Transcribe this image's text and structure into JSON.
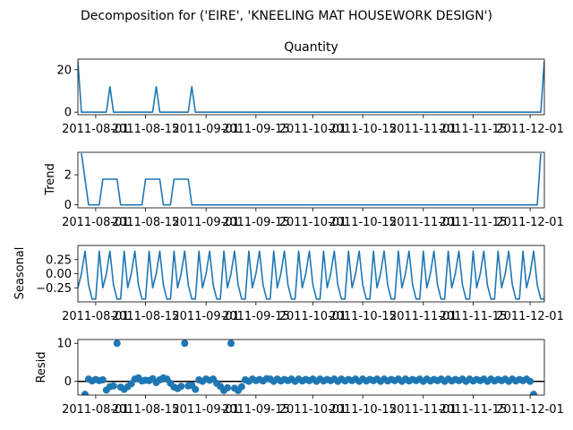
{
  "figure": {
    "suptitle": "Decomposition for ('EIRE', 'KNEELING MAT HOUSEWORK  DESIGN')"
  },
  "colors": {
    "line": "#1f77b4",
    "zero_line": "#000000",
    "axes": "#000000"
  },
  "x_ticks": [
    "2011-08-01",
    "2011-08-15",
    "2011-09-01",
    "2011-09-15",
    "2011-10-01",
    "2011-10-15",
    "2011-11-01",
    "2011-11-15",
    "2011-12-01"
  ],
  "chart_data": [
    {
      "type": "line",
      "panel": "observed",
      "title": "Quantity",
      "ylabel": "",
      "ylim": [
        -1.2,
        25
      ],
      "yticks": [
        0,
        20
      ],
      "x_range": [
        "2011-07-27",
        "2011-12-05"
      ],
      "x": [
        "2011-07-27",
        "2011-07-28",
        "2011-08-04",
        "2011-08-05",
        "2011-08-06",
        "2011-08-17",
        "2011-08-18",
        "2011-08-19",
        "2011-08-27",
        "2011-08-28",
        "2011-08-29",
        "2011-12-04",
        "2011-12-05"
      ],
      "values": [
        24,
        0,
        0,
        12,
        0,
        0,
        12,
        0,
        0,
        12,
        0,
        0,
        24
      ]
    },
    {
      "type": "line",
      "panel": "trend",
      "ylabel": "Trend",
      "ylim": [
        -0.2,
        3.5
      ],
      "yticks": [
        0,
        2
      ],
      "x": [
        "2011-07-28",
        "2011-07-30",
        "2011-08-02",
        "2011-08-03",
        "2011-08-07",
        "2011-08-08",
        "2011-08-14",
        "2011-08-15",
        "2011-08-19",
        "2011-08-20",
        "2011-08-22",
        "2011-08-23",
        "2011-08-27",
        "2011-08-28",
        "2011-12-03",
        "2011-12-04"
      ],
      "values": [
        3.43,
        0,
        0,
        1.71,
        1.71,
        0,
        0,
        1.71,
        1.71,
        0,
        0,
        1.71,
        1.71,
        0,
        0,
        3.43
      ]
    },
    {
      "type": "line",
      "panel": "seasonal",
      "ylabel": "Seasonal",
      "ylim": [
        -0.5,
        0.5
      ],
      "yticks": [
        0.25,
        0.0,
        -0.25
      ],
      "ytick_labels": [
        "0.25",
        "0.00",
        "−0.25"
      ],
      "x_start": "2011-07-27",
      "period_days": 7,
      "pattern": [
        -0.25,
        0.0,
        0.4,
        -0.2,
        -0.45,
        -0.45,
        0.4
      ],
      "periods": 19.7
    },
    {
      "type": "scatter",
      "panel": "resid",
      "ylabel": "Resid",
      "ylim": [
        -3.6,
        11
      ],
      "yticks": [
        10,
        0
      ],
      "zero_line": true,
      "x_start": "2011-07-29",
      "values": [
        -3.4,
        0.6,
        0.1,
        0.5,
        0.2,
        0.4,
        -2.3,
        -1.4,
        -1.2,
        10.0,
        -1.5,
        -2.1,
        -1.4,
        -0.6,
        0.6,
        0.9,
        0.1,
        0.3,
        0.2,
        0.7,
        -0.3,
        0.4,
        0.9,
        0.6,
        -0.5,
        -1.5,
        -1.9,
        -1.3,
        10.0,
        -1.2,
        -1.0,
        -2.1,
        0.4,
        0.0,
        0.6,
        0.3,
        0.6,
        -0.5,
        -1.3,
        -2.4,
        -1.7,
        10.0,
        -1.8,
        -2.4,
        -1.4,
        0.4,
        0.0,
        0.6,
        0.2,
        0.5,
        0.1,
        0.7,
        0.6,
        0.0,
        0.6,
        0.1,
        0.5,
        0.2,
        0.6,
        0.0,
        0.6,
        0.1,
        0.5,
        0.2,
        0.6,
        0.0,
        0.6,
        0.1,
        0.5,
        0.2,
        0.6,
        0.0,
        0.6,
        0.1,
        0.5,
        0.2,
        0.6,
        0.0,
        0.6,
        0.1,
        0.5,
        0.2,
        0.6,
        0.0,
        0.6,
        0.1,
        0.5,
        0.2,
        0.6,
        0.0,
        0.6,
        0.1,
        0.5,
        0.2,
        0.6,
        0.0,
        0.6,
        0.1,
        0.5,
        0.2,
        0.6,
        0.0,
        0.6,
        0.1,
        0.5,
        0.2,
        0.6,
        0.0,
        0.6,
        0.1,
        0.5,
        0.2,
        0.6,
        0.0,
        0.6,
        0.1,
        0.5,
        0.2,
        0.6,
        0.0,
        0.6,
        0.1,
        0.5,
        0.2,
        0.6,
        0.0,
        -3.4
      ]
    }
  ]
}
